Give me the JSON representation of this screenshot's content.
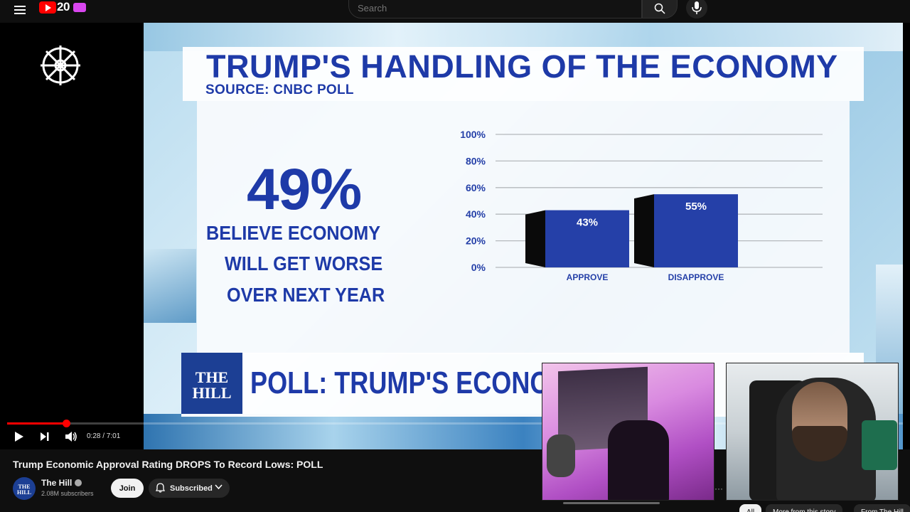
{
  "topbar": {
    "logo_badge": "20",
    "search_placeholder": "Search"
  },
  "video": {
    "graphic_title": "TRUMP'S HANDLING OF THE ECONOMY",
    "graphic_source": "SOURCE: CNBC POLL",
    "stat_value": "49%",
    "stat_lines": [
      "BELIEVE ECONOMY",
      "WILL GET WORSE",
      "OVER NEXT YEAR"
    ],
    "lower_third_logo": [
      "THE",
      "HILL"
    ],
    "lower_third_text": "POLL: TRUMP'S ECONOMIC"
  },
  "chart_data": {
    "type": "bar",
    "categories": [
      "APPROVE",
      "DISAPPROVE"
    ],
    "values": [
      43,
      55
    ],
    "data_labels": [
      "43%",
      "55%"
    ],
    "y_ticks": [
      "0%",
      "20%",
      "40%",
      "60%",
      "80%",
      "100%"
    ],
    "ylim": [
      0,
      100
    ],
    "grid": true,
    "bar_color": "#2540a8"
  },
  "player": {
    "current_time": "0:28",
    "duration": "7:01",
    "time_display": "0:28 / 7:01",
    "progress": 0.066
  },
  "below": {
    "title": "Trump Economic Approval Rating DROPS To Record Lows: POLL",
    "channel_name": "The Hill",
    "channel_avatar_text": [
      "THE",
      "HILL"
    ],
    "subscribers": "2.08M subscribers",
    "join_label": "Join",
    "subscribed_label": "Subscribed",
    "more_label": "···"
  },
  "chips": [
    {
      "label": "All",
      "active": true
    },
    {
      "label": "More from this story",
      "active": false
    },
    {
      "label": "From The Hill",
      "active": false
    }
  ],
  "colors": {
    "accent_red": "#ff0000",
    "graphic_blue": "#1e3aa8",
    "hill_blue": "#1c3f94"
  }
}
